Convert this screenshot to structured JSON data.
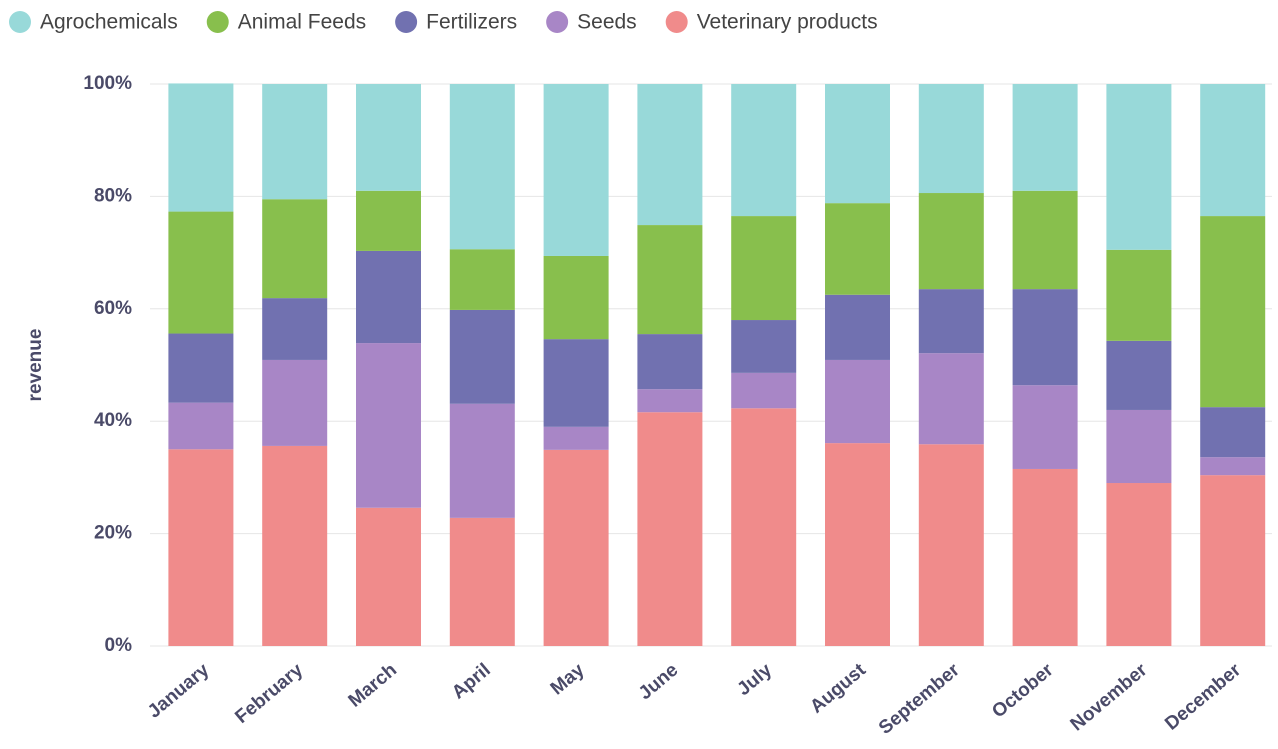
{
  "chart_data": {
    "type": "stacked_bar_100",
    "y_label": "revenue",
    "categories": [
      "January",
      "February",
      "March",
      "April",
      "May",
      "June",
      "July",
      "August",
      "September",
      "October",
      "November",
      "December"
    ],
    "series": [
      {
        "name": "Agrochemicals",
        "color": "#98d9d9",
        "values": [
          22.8,
          20.5,
          19.0,
          29.4,
          30.6,
          25.1,
          23.5,
          21.2,
          19.4,
          19.0,
          29.5,
          23.5
        ]
      },
      {
        "name": "Animal Feeds",
        "color": "#88bf4d",
        "values": [
          21.7,
          17.6,
          10.7,
          10.8,
          14.8,
          19.4,
          18.5,
          16.3,
          17.1,
          17.5,
          16.2,
          34.0
        ]
      },
      {
        "name": "Fertilizers",
        "color": "#7171b0",
        "values": [
          12.3,
          11.0,
          16.4,
          16.7,
          15.6,
          9.8,
          9.4,
          11.6,
          11.4,
          17.1,
          12.3,
          8.9
        ]
      },
      {
        "name": "Seeds",
        "color": "#a886c6",
        "values": [
          8.3,
          15.3,
          29.3,
          20.3,
          4.1,
          4.1,
          6.3,
          14.8,
          16.2,
          14.9,
          13.0,
          3.2
        ]
      },
      {
        "name": "Veterinary products",
        "color": "#f08b8b",
        "values": [
          35.0,
          35.6,
          24.6,
          22.8,
          34.9,
          41.6,
          42.3,
          36.1,
          35.9,
          31.5,
          29.0,
          30.4
        ]
      }
    ],
    "ylim": [
      0,
      100
    ],
    "yticks": [
      {
        "value": 0,
        "label": "0%"
      },
      {
        "value": 20,
        "label": "20%"
      },
      {
        "value": 40,
        "label": "40%"
      },
      {
        "value": 60,
        "label": "60%"
      },
      {
        "value": 80,
        "label": "80%"
      },
      {
        "value": 100,
        "label": "100%"
      }
    ],
    "grid": true,
    "legend": "top"
  }
}
